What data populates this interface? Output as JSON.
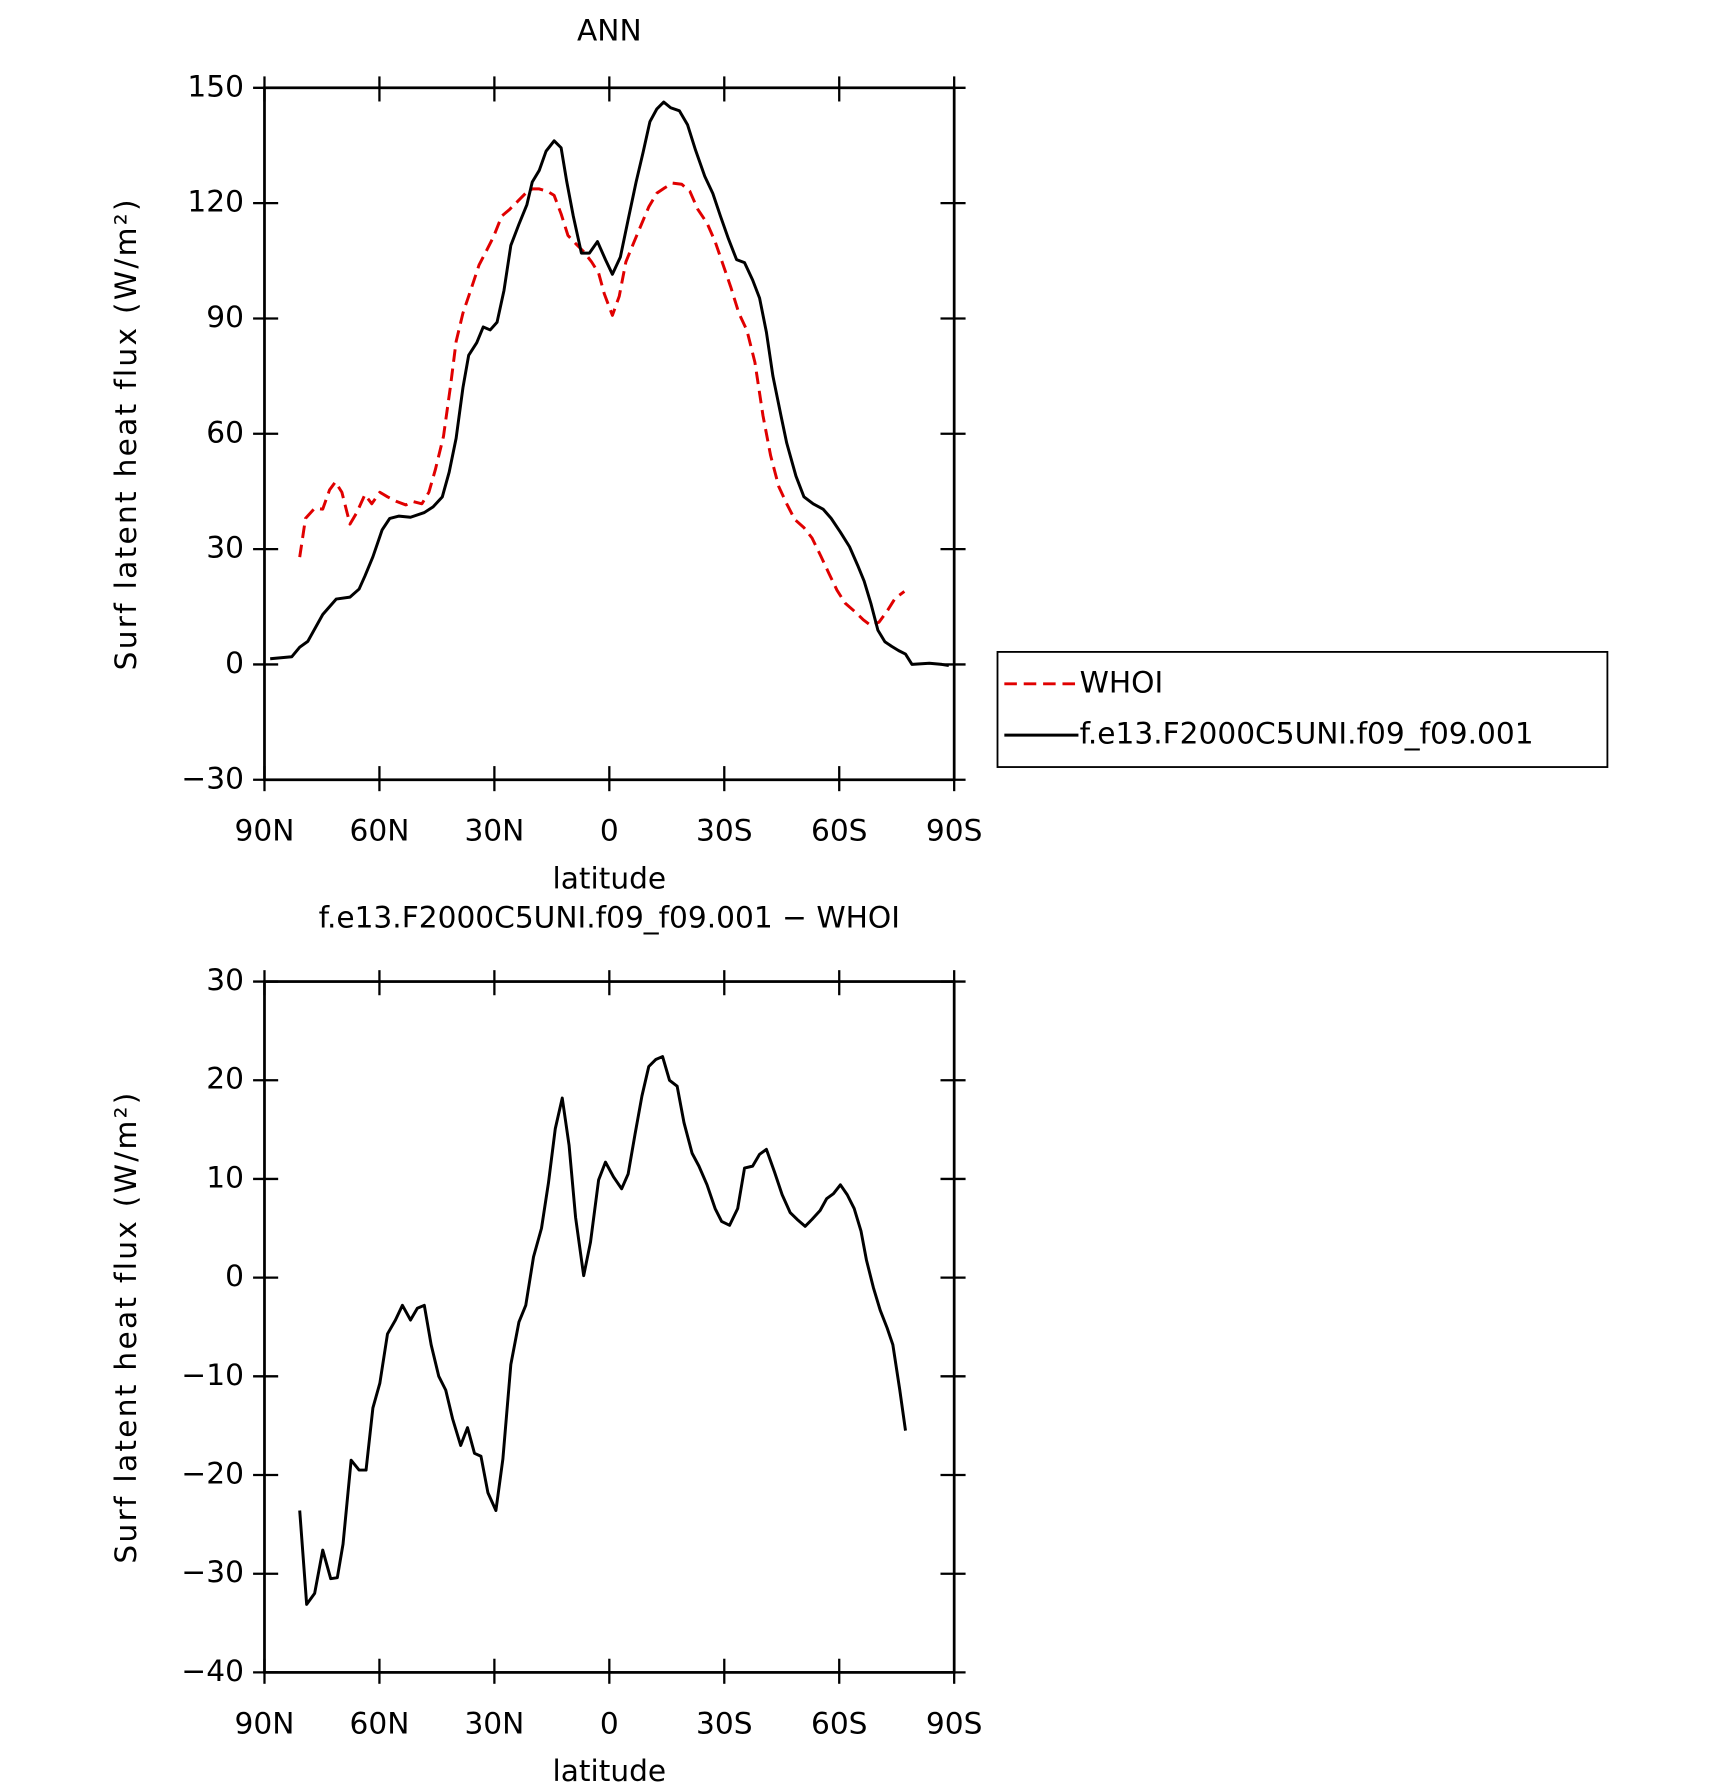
{
  "chart_data": [
    {
      "type": "line",
      "title": "ANN",
      "ylabel": "Surf latent heat flux (W/m²)",
      "xlabel": "latitude",
      "xlim": [
        90,
        -90
      ],
      "xticks": [
        {
          "value": 90,
          "label": "90N"
        },
        {
          "value": 60,
          "label": "60N"
        },
        {
          "value": 30,
          "label": "30N"
        },
        0,
        {
          "value": -30,
          "label": "30S"
        },
        {
          "value": -60,
          "label": "60S"
        },
        {
          "value": -90,
          "label": "90S"
        }
      ],
      "ylim": [
        -30,
        150
      ],
      "yticks": [
        {
          "value": -30,
          "label": "−30"
        },
        0,
        30,
        60,
        90,
        120,
        150
      ],
      "legend": "right",
      "series": [
        {
          "name": "WHOI",
          "color": "#e00000",
          "dash": true,
          "x": [
            80.8,
            79.3,
            76.9,
            74.8,
            73,
            71.5,
            69.8,
            67.7,
            65.9,
            63.8,
            62,
            59.9,
            57.9,
            55.5,
            53.1,
            51.3,
            48.9,
            47.1,
            45.4,
            43.3,
            41.5,
            40,
            38.2,
            36.1,
            34,
            32,
            30.2,
            28.1,
            26,
            23.9,
            21.8,
            20.1,
            18.3,
            16.2,
            14.4,
            12.6,
            10.8,
            8.8,
            6.7,
            4.6,
            2.8,
            1.3,
            -0.8,
            -2.6,
            -4.3,
            -6.4,
            -8.5,
            -10.3,
            -12.4,
            -14.5,
            -16.5,
            -18.9,
            -21,
            -23.1,
            -25.5,
            -27.6,
            -29.6,
            -31.7,
            -33.8,
            -35.9,
            -38,
            -40.1,
            -42.1,
            -44.2,
            -46.3,
            -48.4,
            -50.8,
            -52.9,
            -55.2,
            -57.3,
            -59.4,
            -61.5,
            -63.9,
            -66.3,
            -68.3,
            -70.4,
            -72.5,
            -74.6,
            -77
          ],
          "values": [
            27.9,
            38,
            40.6,
            40.4,
            45.4,
            47.5,
            44.8,
            36.5,
            39.5,
            44.2,
            41.8,
            44.8,
            43.6,
            42.4,
            41.5,
            42.4,
            41.8,
            44.8,
            50.7,
            59.3,
            72,
            84,
            91.4,
            97.6,
            103.9,
            107.7,
            111.3,
            116.6,
            118.4,
            120.5,
            122.6,
            123.7,
            123.7,
            123.1,
            122,
            117.2,
            111.6,
            109.5,
            107.4,
            104.7,
            101.8,
            96.4,
            90.8,
            95.8,
            104.7,
            109.8,
            114.8,
            119,
            122.6,
            124,
            125.2,
            124.9,
            123.1,
            118.4,
            114.8,
            110,
            104.2,
            98.2,
            91.4,
            86.9,
            78.6,
            64.7,
            54.3,
            46.3,
            41.8,
            37.7,
            35.6,
            32.9,
            28.2,
            23.7,
            19.3,
            16,
            13.9,
            11.6,
            10.1,
            11,
            13.9,
            17.2,
            19
          ]
        },
        {
          "name": "f.e13.F2000C5UNI.f09_f09.001",
          "color": "#000000",
          "dash": false,
          "x": [
            88.5,
            82.9,
            80.8,
            78.7,
            74.8,
            71.3,
            67.7,
            65.3,
            63.8,
            61.7,
            59.3,
            57.3,
            54.9,
            51.9,
            48.3,
            46,
            43.6,
            41.8,
            40,
            38.2,
            36.7,
            34.6,
            32.9,
            31.1,
            29.3,
            27.5,
            25.7,
            23.6,
            21.5,
            20.1,
            18.3,
            16.5,
            14.4,
            12.6,
            11.1,
            9.4,
            7.3,
            5.2,
            3.1,
            1,
            -0.8,
            -2.9,
            -4.9,
            -7,
            -8.8,
            -10.6,
            -12.4,
            -14.2,
            -16,
            -18.3,
            -20.4,
            -22.5,
            -24.9,
            -27,
            -29,
            -31.1,
            -33.2,
            -35.3,
            -37.4,
            -39.2,
            -41,
            -42.7,
            -44.8,
            -46.3,
            -48.7,
            -50.8,
            -53.2,
            -55.8,
            -57.9,
            -60.3,
            -62.7,
            -64.8,
            -66.5,
            -68.3,
            -70.1,
            -71.9,
            -73.7,
            -75.5,
            -77.3,
            -79,
            -83.5,
            -86.8,
            -88.6
          ],
          "values": [
            1.5,
            2,
            4.5,
            6,
            13,
            17,
            17.5,
            19.6,
            23,
            28,
            35,
            38,
            38.6,
            38.3,
            39.5,
            41,
            43.6,
            50,
            58.8,
            72,
            80.4,
            83.7,
            87.8,
            87,
            89,
            97.3,
            109,
            114.5,
            119.6,
            125.5,
            128.5,
            133.5,
            136.2,
            134.4,
            125.5,
            116.6,
            107,
            107,
            110,
            105.3,
            101.5,
            106,
            115.7,
            125.5,
            133.2,
            141.2,
            144.5,
            146.3,
            144.8,
            144,
            140.4,
            133.8,
            127,
            122.5,
            116.6,
            110.7,
            105.3,
            104.5,
            100,
            95.3,
            86.4,
            75,
            64.7,
            57.6,
            49,
            43.6,
            41.8,
            40.4,
            38,
            34.4,
            30.6,
            25.8,
            21.7,
            15.7,
            8.9,
            5.9,
            4.7,
            3.6,
            2.7,
            0,
            0.3,
            0,
            -0.3
          ]
        }
      ]
    },
    {
      "type": "line",
      "title": "f.e13.F2000C5UNI.f09_f09.001 − WHOI",
      "ylabel": "Surf latent heat flux (W/m²)",
      "xlabel": "latitude",
      "xlim": [
        90,
        -90
      ],
      "xticks": [
        {
          "value": 90,
          "label": "90N"
        },
        {
          "value": 60,
          "label": "60N"
        },
        {
          "value": 30,
          "label": "30N"
        },
        0,
        {
          "value": -30,
          "label": "30S"
        },
        {
          "value": -60,
          "label": "60S"
        },
        {
          "value": -90,
          "label": "90S"
        }
      ],
      "ylim": [
        -40,
        30
      ],
      "yticks": [
        {
          "value": -40,
          "label": "−40"
        },
        {
          "value": -30,
          "label": "−30"
        },
        {
          "value": -20,
          "label": "−20"
        },
        {
          "value": -10,
          "label": "−10"
        },
        0,
        10,
        20,
        30
      ],
      "color": "#000000",
      "x": [
        80.8,
        79,
        76.9,
        74.8,
        72.7,
        71,
        69.5,
        67.4,
        65.3,
        63.5,
        61.7,
        59.9,
        57.9,
        55.8,
        54,
        51.9,
        50.1,
        48.3,
        46.5,
        44.5,
        42.7,
        40.9,
        38.8,
        37,
        35.2,
        33.5,
        31.7,
        29.6,
        27.8,
        25.7,
        23.6,
        21.8,
        19.8,
        17.7,
        15.9,
        14.1,
        12.3,
        10.5,
        8.8,
        6.7,
        4.9,
        2.8,
        1,
        -1.1,
        -3.2,
        -4.9,
        -6.7,
        -8.5,
        -10.3,
        -12.1,
        -13.9,
        -15.7,
        -17.7,
        -19.5,
        -21.6,
        -23.4,
        -25.5,
        -27.6,
        -29.3,
        -31.4,
        -33.5,
        -35.3,
        -37.4,
        -39.2,
        -41,
        -43.1,
        -45.1,
        -47.2,
        -49,
        -51.1,
        -52.9,
        -55,
        -56.7,
        -58.5,
        -60.3,
        -62.1,
        -63.9,
        -65.7,
        -67.1,
        -68.9,
        -70.7,
        -72.5,
        -74,
        -75.8,
        -77.3
      ],
      "values": [
        -23.6,
        -33.1,
        -32,
        -27.6,
        -30.5,
        -30.4,
        -27,
        -18.5,
        -19.5,
        -19.5,
        -13.2,
        -10.7,
        -5.7,
        -4.3,
        -2.8,
        -4.3,
        -3.1,
        -2.8,
        -6.8,
        -10,
        -11.4,
        -14.3,
        -17,
        -15.2,
        -17.8,
        -18.1,
        -21.8,
        -23.6,
        -18.4,
        -8.8,
        -4.5,
        -2.8,
        2.1,
        5,
        9.6,
        15.1,
        18.2,
        13.4,
        6.1,
        0.2,
        3.6,
        9.9,
        11.7,
        10.2,
        9,
        10.5,
        14.5,
        18.4,
        21.4,
        22.1,
        22.4,
        20,
        19.4,
        15.7,
        12.6,
        11.3,
        9.4,
        7,
        5.7,
        5.3,
        7,
        11.1,
        11.3,
        12.5,
        13,
        10.7,
        8.4,
        6.6,
        5.9,
        5.2,
        5.9,
        6.8,
        8,
        8.5,
        9.4,
        8.4,
        7,
        4.7,
        1.8,
        -1,
        -3.3,
        -5.1,
        -6.8,
        -11.4,
        -15.5
      ]
    }
  ]
}
